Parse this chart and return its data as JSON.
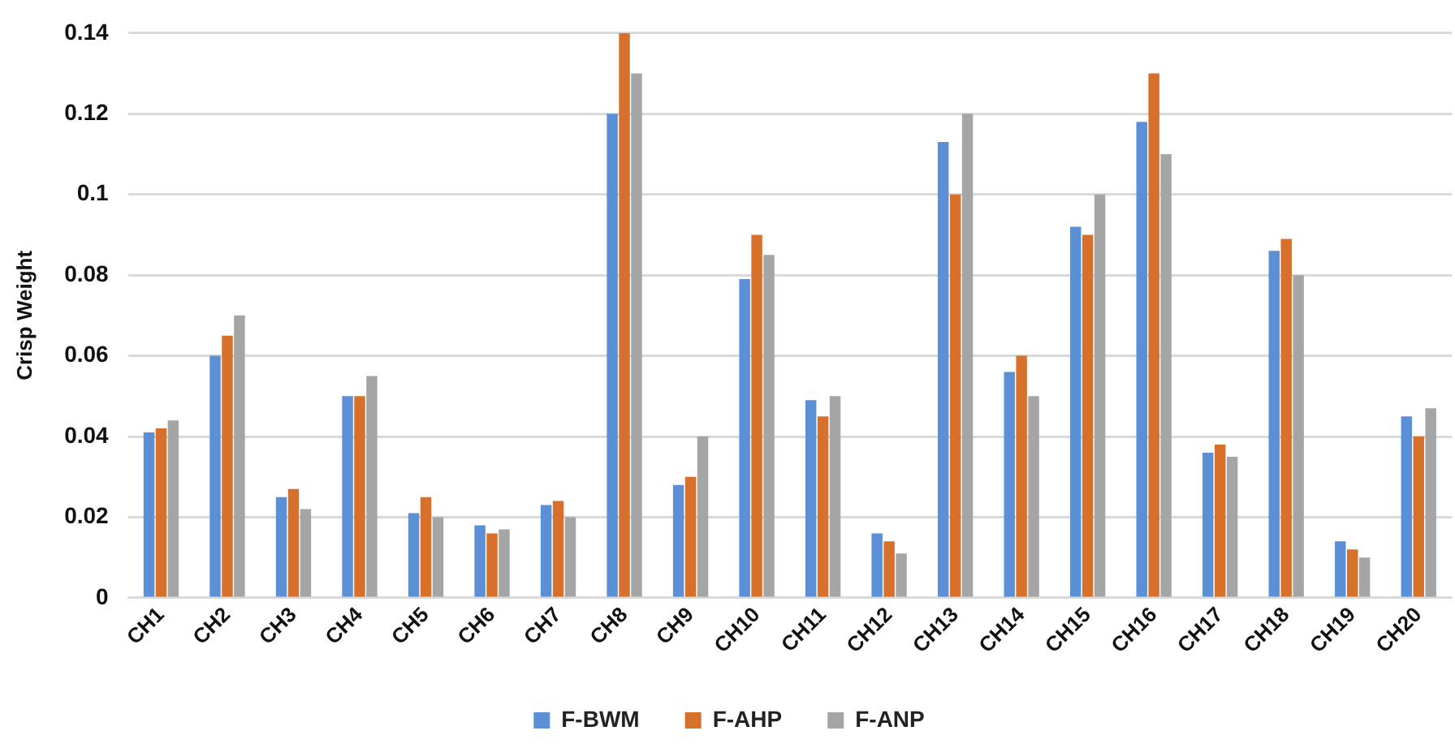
{
  "chart_data": {
    "type": "bar",
    "ylabel": "Crisp Weight",
    "categories": [
      "CH1",
      "CH2",
      "CH3",
      "CH4",
      "CH5",
      "CH6",
      "CH7",
      "CH8",
      "CH9",
      "CH10",
      "CH11",
      "CH12",
      "CH13",
      "CH14",
      "CH15",
      "CH16",
      "CH17",
      "CH18",
      "CH19",
      "CH20"
    ],
    "series": [
      {
        "name": "F-BWM",
        "color": "#5b8fd6",
        "values": [
          0.041,
          0.06,
          0.025,
          0.05,
          0.021,
          0.018,
          0.023,
          0.12,
          0.028,
          0.079,
          0.049,
          0.016,
          0.113,
          0.056,
          0.092,
          0.118,
          0.036,
          0.086,
          0.014,
          0.045
        ]
      },
      {
        "name": "F-AHP",
        "color": "#d6702a",
        "values": [
          0.042,
          0.065,
          0.027,
          0.05,
          0.025,
          0.016,
          0.024,
          0.14,
          0.03,
          0.09,
          0.045,
          0.014,
          0.1,
          0.06,
          0.09,
          0.13,
          0.038,
          0.089,
          0.012,
          0.04
        ]
      },
      {
        "name": "F-ANP",
        "color": "#a5a5a5",
        "values": [
          0.044,
          0.07,
          0.022,
          0.055,
          0.02,
          0.017,
          0.02,
          0.13,
          0.04,
          0.085,
          0.05,
          0.011,
          0.12,
          0.05,
          0.1,
          0.11,
          0.035,
          0.08,
          0.01,
          0.047
        ]
      }
    ],
    "ylim": [
      0,
      0.14
    ],
    "yticks": [
      0,
      0.02,
      0.04,
      0.06,
      0.08,
      0.1,
      0.12,
      0.14
    ],
    "grid": "y",
    "legend": "bottom"
  }
}
